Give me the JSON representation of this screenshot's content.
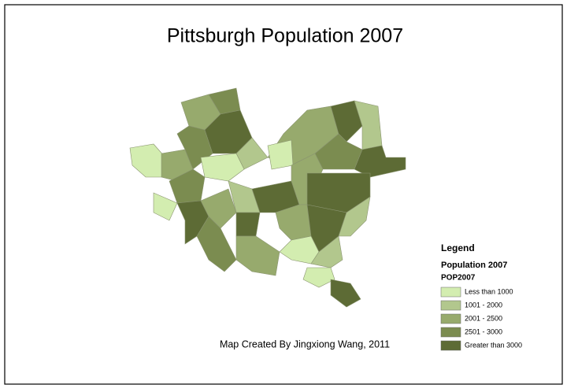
{
  "title": "Pittsburgh Population 2007",
  "credit": "Map Created By Jingxiong Wang, 2011",
  "legend": {
    "heading": "Legend",
    "layer": "Population 2007",
    "field": "POP2007",
    "items": [
      {
        "label": "Less than 1000",
        "color": "#d3edb0"
      },
      {
        "label": "1001 - 2000",
        "color": "#b2c78d"
      },
      {
        "label": "2001 - 2500",
        "color": "#97aa6d"
      },
      {
        "label": "2501 - 3000",
        "color": "#7b8c50"
      },
      {
        "label": "Greater than 3000",
        "color": "#5d6b35"
      }
    ]
  }
}
